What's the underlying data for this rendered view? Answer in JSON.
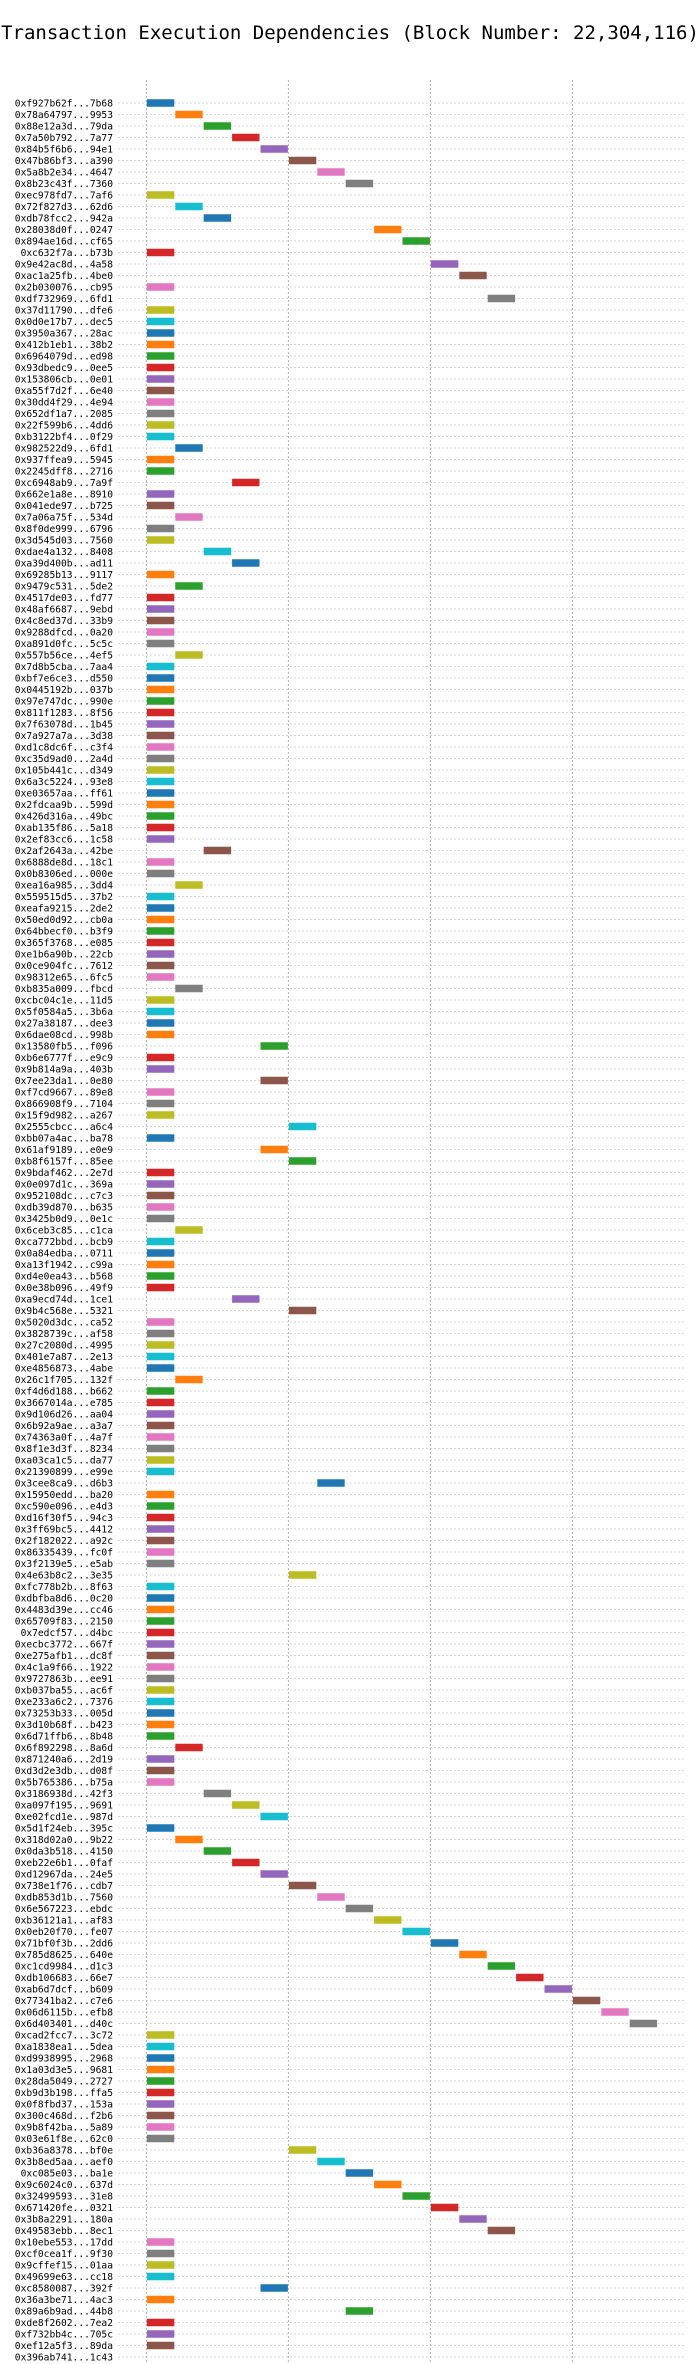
{
  "chart_data": {
    "type": "bar",
    "orientation": "horizontal-gantt",
    "title": "Transaction Execution Dependencies (Block Number: 22,304,116)",
    "xlabel": "",
    "ylabel": "",
    "xlim": [
      -1,
      19
    ],
    "xticks": [
      0,
      5,
      10,
      15
    ],
    "grid": true,
    "colors": [
      "#1f77b4",
      "#ff7f0e",
      "#2ca02c",
      "#d62728",
      "#9467bd",
      "#8c564b",
      "#e377c2",
      "#7f7f7f",
      "#bcbd22",
      "#17becf"
    ],
    "bar_length": 1,
    "transactions": [
      "0xf927b62f...7b68",
      "0x78a64797...9953",
      "0x88e12a3d...79da",
      "0x7a50b792...7a77",
      "0x84b5f6b6...94e1",
      "0x47b86bf3...a390",
      "0x5a8b2e34...4647",
      "0x8b23c43f...7360",
      "0xec978fd7...7af6",
      "0x72f827d3...62d6",
      "0xdb78fcc2...942a",
      "0x28038d0f...0247",
      "0x894ae16d...cf65",
      "0xc632f7a...b73b",
      "0x9e42ac8d...4a58",
      "0xac1a25fb...4be0",
      "0x2b030076...cb95",
      "0xdf732969...6fd1",
      "0x37d11790...dfe6",
      "0x0d0e17b7...dec5",
      "0x3950a367...28ac",
      "0x412b1eb1...38b2",
      "0x6964079d...ed98",
      "0x93dbedc9...0ee5",
      "0x153806cb...0e01",
      "0xa55f7d2f...6e40",
      "0x30dd4f29...4e94",
      "0x652df1a7...2085",
      "0x22f599b6...4dd6",
      "0xb3122bf4...0f29",
      "0x982522d9...6fd1",
      "0x937ffea9...5945",
      "0x2245dff8...2716",
      "0xc6948ab9...7a9f",
      "0x662e1a8e...8910",
      "0x041ede97...b725",
      "0x7a06a75f...534d",
      "0x8f0de999...6796",
      "0x3d545d03...7560",
      "0xdae4a132...8408",
      "0xa39d400b...ad11",
      "0x69285b13...9117",
      "0x9479c531...5de2",
      "0x4517de03...fd77",
      "0x48af6687...9ebd",
      "0x4c8ed37d...33b9",
      "0x9288dfcd...0a20",
      "0xa891d0fc...5c5c",
      "0x557b56ce...4ef5",
      "0x7d8b5cba...7aa4",
      "0xbf7e6ce3...d550",
      "0x0445192b...037b",
      "0x97e747dc...990e",
      "0x811f1283...8f56",
      "0x7f63078d...1b45",
      "0x7a927a7a...3d38",
      "0xd1c8dc6f...c3f4",
      "0xc35d9ad0...2a4d",
      "0x105b441c...d349",
      "0x6a3c5224...93e8",
      "0xe03657aa...ff61",
      "0x2fdcaa9b...599d",
      "0x426d316a...49bc",
      "0xab135f86...5a18",
      "0x2ef83cc6...1c58",
      "0x2af2643a...42be",
      "0x6888de8d...18c1",
      "0x0b8306ed...000e",
      "0xea16a985...3dd4",
      "0x559515d5...37b2",
      "0xeafa9215...2de2",
      "0x50ed0d92...cb0a",
      "0x64bbecf0...b3f9",
      "0x365f3768...e085",
      "0xe1b6a90b...22cb",
      "0x0ce904fc...7612",
      "0x98312e65...6fc5",
      "0xb835a009...fbcd",
      "0xcbc04c1e...11d5",
      "0x5f0584a5...3b6a",
      "0x27a38187...dee3",
      "0x6dae08cd...998b",
      "0x13580fb5...f096",
      "0xb6e6777f...e9c9",
      "0x9b814a9a...403b",
      "0x7ee23da1...0e80",
      "0xf7cd9667...89e8",
      "0x866908f9...7104",
      "0x15f9d982...a267",
      "0x2555cbcc...a6c4",
      "0xbb07a4ac...ba78",
      "0x61af9189...e0e9",
      "0xb8f6157f...85ee",
      "0x9bdaf462...2e7d",
      "0x0e097d1c...369a",
      "0x952108dc...c7c3",
      "0xdb39d870...b635",
      "0x3425b0d9...0e1c",
      "0x6ceb3c85...c1ca",
      "0xca772bbd...bcb9",
      "0x0a84edba...0711",
      "0xa13f1942...c99a",
      "0xd4e0ea43...b568",
      "0x0e38b096...49f9",
      "0xa9ecd74d...1ce1",
      "0x9b4c568e...5321",
      "0x5020d3dc...ca52",
      "0x3828739c...af58",
      "0x27c2080d...4995",
      "0x401e7a87...2e13",
      "0xe4856873...4abe",
      "0x26c1f705...132f",
      "0xf4d6d188...b662",
      "0x3667014a...e785",
      "0x9d106d26...aa04",
      "0x6b92a9ae...a3a7",
      "0x74363a0f...4a7f",
      "0x8f1e3d3f...8234",
      "0xa03ca1c5...da77",
      "0x21390899...e99e",
      "0x3cee8ca9...d6b3",
      "0x15950edd...ba20",
      "0xc590e096...e4d3",
      "0xd16f30f5...94c3",
      "0x3ff69bc5...4412",
      "0x2f182022...a92c",
      "0x86335439...fc0f",
      "0x3f2139e5...e5ab",
      "0x4e63b8c2...3e35",
      "0xfc778b2b...8f63",
      "0xdbfba8d6...0c20",
      "0x4483d39e...cc46",
      "0x65709f83...2150",
      "0x7edcf57...d4bc",
      "0xecbc3772...667f",
      "0xe275afb1...dc8f",
      "0x4c1a9f66...1922",
      "0x9727863b...ee91",
      "0xb037ba55...ac6f",
      "0xe233a6c2...7376",
      "0x73253b33...005d",
      "0x3d10b68f...b423",
      "0x6d71ffb6...8b48",
      "0x6f892298...8a6d",
      "0x871240a6...2d19",
      "0xd3d2e3db...d08f",
      "0x5b765386...b75a",
      "0x3186938d...42f3",
      "0xa097f195...9691",
      "0xe02fcd1e...987d",
      "0x5d1f24eb...395c",
      "0x318d02a0...9b22",
      "0x0da3b518...4150",
      "0xeb22e6b1...0faf",
      "0xd12967da...24e5",
      "0x738e1f76...cdb7",
      "0xdb853d1b...7560",
      "0x6e567223...ebdc",
      "0xb36121a1...af83",
      "0x0eb20f70...fe07",
      "0x71bf0f3b...2dd6",
      "0x785d8625...640e",
      "0xc1cd9984...d1c3",
      "0xdb106683...66e7",
      "0xab6d7dcf...b609",
      "0x77341ba2...c7e6",
      "0x06d6115b...efb8",
      "0x6d403401...d40c",
      "0xcad2fcc7...3c72",
      "0xa1838ea1...5dea",
      "0xd9938995...2968",
      "0x1a03d3e5...9681",
      "0x28da5049...2727",
      "0xb9d3b198...ffa5",
      "0x0f8fbd37...153a",
      "0x300c468d...f2b6",
      "0x9b8f42ba...5a89",
      "0x03e61f8e...62c0",
      "0xb36a8378...bf0e",
      "0x3b8ed5aa...aef0",
      "0xc085e03...ba1e",
      "0x9c6024c0...637d",
      "0x32499593...31e8",
      "0x671420fe...0321",
      "0x3b8a2291...180a",
      "0x49583ebb...8ec1",
      "0x10ebe553...17dd",
      "0xcf0cea1f...9f30",
      "0x9cffef15...01aa",
      "0x49699e63...cc18",
      "0xc8580087...392f",
      "0x36a3be71...4ac3",
      "0x89a6b9ad...44b8",
      "0xde8f2602...7ea2",
      "0xf732bb4c...705c",
      "0xef12a5f3...89da",
      "0x396ab741...1c43"
    ],
    "start_times": [
      0,
      1,
      2,
      3,
      4,
      5,
      6,
      7,
      0,
      1,
      2,
      8,
      9,
      0,
      10,
      11,
      0,
      12,
      0,
      0,
      0,
      0,
      0,
      0,
      0,
      0,
      0,
      0,
      0,
      0,
      1,
      0,
      0,
      3,
      0,
      0,
      1,
      0,
      0,
      2,
      3,
      0,
      1,
      0,
      0,
      0,
      0,
      0,
      1,
      0,
      0,
      0,
      0,
      0,
      0,
      0,
      0,
      0,
      0,
      0,
      0,
      0,
      0,
      0,
      0,
      2,
      0,
      0,
      1,
      0,
      0,
      0,
      0,
      0,
      0,
      0,
      0,
      1,
      0,
      0,
      0,
      0,
      4,
      0,
      0,
      4,
      0,
      0,
      0,
      5,
      0,
      4,
      5,
      0,
      0,
      0,
      0,
      0,
      1,
      0,
      0,
      0,
      0,
      0,
      3,
      5,
      0,
      0,
      0,
      0,
      0,
      1,
      0,
      0,
      0,
      0,
      0,
      0,
      0,
      0,
      6,
      0,
      0,
      0,
      0,
      0,
      0,
      0,
      5,
      0,
      0,
      0,
      0,
      0,
      0,
      0,
      0,
      0,
      0,
      0,
      0,
      0,
      0,
      1,
      0,
      0,
      0,
      2,
      3,
      4,
      0,
      1,
      2,
      3,
      4,
      5,
      6,
      7,
      8,
      9,
      10,
      11,
      12,
      13,
      14,
      15,
      16,
      17,
      0,
      0,
      0,
      0,
      0,
      0,
      0,
      0,
      0,
      0,
      5,
      6,
      7,
      8,
      9,
      10,
      11,
      12,
      0,
      0,
      0,
      0,
      4,
      0,
      7,
      0,
      0,
      0
    ],
    "color_indices": [
      0,
      1,
      2,
      3,
      4,
      5,
      6,
      7,
      8,
      9,
      0,
      1,
      2,
      3,
      4,
      5,
      6,
      7,
      8,
      9,
      0,
      1,
      2,
      3,
      4,
      5,
      6,
      7,
      8,
      9,
      0,
      1,
      2,
      3,
      4,
      5,
      6,
      7,
      8,
      9,
      0,
      1,
      2,
      3,
      4,
      5,
      6,
      7,
      8,
      9,
      0,
      1,
      2,
      3,
      4,
      5,
      6,
      7,
      8,
      9,
      0,
      1,
      2,
      3,
      4,
      5,
      6,
      7,
      8,
      9,
      0,
      1,
      2,
      3,
      4,
      5,
      6,
      7,
      8,
      9,
      0,
      1,
      2,
      3,
      4,
      5,
      6,
      7,
      8,
      9,
      0,
      1,
      2,
      3,
      4,
      5,
      6,
      7,
      8,
      9,
      0,
      1,
      2,
      3,
      4,
      5,
      6,
      7,
      8,
      9,
      0,
      1,
      2,
      3,
      4,
      5,
      6,
      7,
      8,
      9,
      0,
      1,
      2,
      3,
      4,
      5,
      6,
      7,
      8,
      9,
      0,
      1,
      2,
      3,
      4,
      5,
      6,
      7,
      8,
      9,
      0,
      1,
      2,
      3,
      4,
      5,
      6,
      7,
      8,
      9,
      0,
      1,
      2,
      3,
      4,
      5,
      6,
      7,
      8,
      9,
      0,
      1,
      2,
      3,
      4,
      5,
      6,
      7,
      8,
      9,
      0,
      1,
      2,
      3,
      4,
      5,
      6,
      7,
      8,
      9,
      0,
      1,
      2,
      3,
      4,
      5,
      6,
      7,
      8,
      9,
      0,
      1,
      2,
      3,
      4,
      5
    ]
  }
}
